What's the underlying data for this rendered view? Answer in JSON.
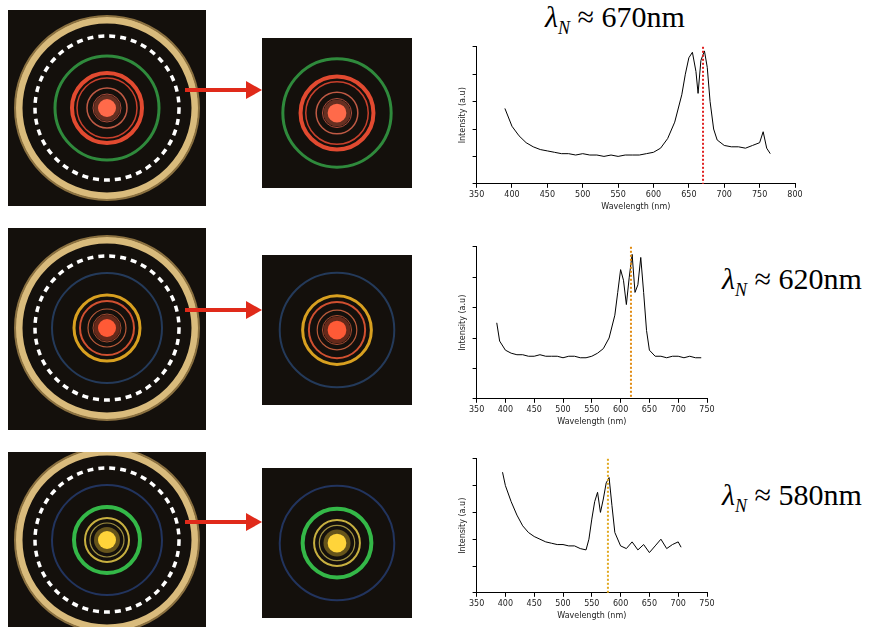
{
  "chart_data": [
    {
      "type": "line",
      "x": [
        390,
        400,
        410,
        420,
        430,
        440,
        450,
        460,
        470,
        480,
        490,
        500,
        510,
        520,
        530,
        540,
        550,
        560,
        570,
        580,
        590,
        600,
        610,
        620,
        630,
        640,
        645,
        650,
        655,
        660,
        663,
        667,
        672,
        676,
        680,
        685,
        690,
        700,
        710,
        720,
        730,
        740,
        750,
        755,
        760,
        765
      ],
      "values": [
        55,
        42,
        35,
        30,
        27,
        25,
        24,
        23,
        22,
        22,
        21,
        22,
        21,
        21,
        20,
        21,
        20,
        21,
        21,
        21,
        22,
        23,
        26,
        33,
        45,
        65,
        80,
        92,
        96,
        82,
        66,
        90,
        97,
        85,
        60,
        40,
        32,
        28,
        27,
        27,
        26,
        28,
        30,
        38,
        26,
        22
      ],
      "color": "#000000",
      "xlabel": "Wavelength (nm)",
      "ylabel": "Intensity (a.u)",
      "xlim": [
        350,
        800
      ],
      "xticks": [
        350,
        400,
        450,
        500,
        550,
        600,
        650,
        700,
        750,
        800
      ],
      "ylim": [
        0,
        100
      ],
      "yticks": [
        0,
        20,
        40,
        60,
        80,
        100
      ],
      "tick_labels": "x",
      "grid": false,
      "annotation": {
        "text": "λN ≈ 670nm",
        "x": 670,
        "color": "#e02020"
      }
    },
    {
      "type": "line",
      "x": [
        385,
        390,
        400,
        410,
        420,
        430,
        440,
        450,
        460,
        470,
        480,
        490,
        500,
        510,
        520,
        530,
        540,
        550,
        560,
        570,
        580,
        590,
        595,
        600,
        605,
        610,
        615,
        620,
        625,
        630,
        635,
        640,
        645,
        650,
        660,
        670,
        680,
        690,
        700,
        710,
        720,
        730,
        740
      ],
      "values": [
        50,
        38,
        32,
        30,
        29,
        29,
        28,
        28,
        29,
        28,
        28,
        28,
        27,
        28,
        28,
        27,
        27,
        28,
        30,
        33,
        40,
        55,
        70,
        85,
        78,
        62,
        80,
        95,
        70,
        75,
        93,
        70,
        45,
        32,
        28,
        28,
        27,
        28,
        28,
        27,
        28,
        27,
        27
      ],
      "color": "#000000",
      "xlabel": "Wavelength (nm)",
      "ylabel": "Intensity (a.u)",
      "xlim": [
        350,
        750
      ],
      "xticks": [
        350,
        400,
        450,
        500,
        550,
        600,
        650,
        700,
        750
      ],
      "ylim": [
        0,
        100
      ],
      "yticks": [
        0,
        20,
        40,
        60,
        80,
        100
      ],
      "tick_labels": "x",
      "grid": false,
      "annotation": {
        "text": "λN ≈ 620nm",
        "x": 618,
        "color": "#e08a10"
      }
    },
    {
      "type": "line",
      "x": [
        395,
        400,
        410,
        420,
        430,
        440,
        450,
        460,
        470,
        480,
        490,
        500,
        510,
        520,
        530,
        540,
        545,
        550,
        555,
        560,
        565,
        570,
        575,
        580,
        585,
        590,
        600,
        610,
        620,
        630,
        640,
        650,
        660,
        670,
        680,
        690,
        700,
        705
      ],
      "values": [
        90,
        80,
        68,
        58,
        50,
        45,
        42,
        40,
        38,
        37,
        36,
        36,
        35,
        35,
        33,
        32,
        40,
        55,
        68,
        75,
        60,
        70,
        82,
        86,
        65,
        45,
        35,
        33,
        38,
        32,
        36,
        30,
        35,
        40,
        33,
        36,
        38,
        34
      ],
      "color": "#000000",
      "xlabel": "Wavelength (nm)",
      "ylabel": "Intensity (a.u)",
      "xlim": [
        350,
        750
      ],
      "xticks": [
        350,
        400,
        450,
        500,
        550,
        600,
        650,
        700,
        750
      ],
      "ylim": [
        0,
        100
      ],
      "yticks": [
        0,
        20,
        40,
        60,
        80,
        100
      ],
      "tick_labels": "x",
      "grid": false,
      "annotation": {
        "text": "λN ≈ 580nm",
        "x": 578,
        "color": "#e0a820"
      }
    }
  ]
}
